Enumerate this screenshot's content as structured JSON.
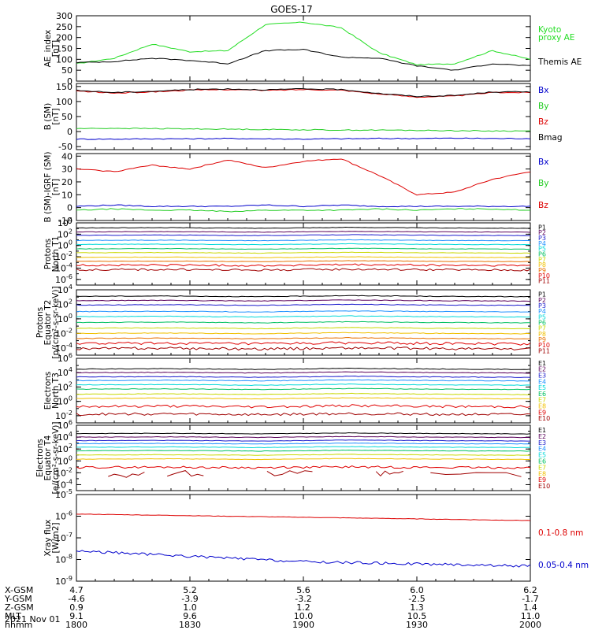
{
  "title": "GOES-17",
  "date_label": "2021 Nov 01",
  "footer": {
    "rows": [
      {
        "label": "X-GSM",
        "values": [
          "4.7",
          "5.2",
          "5.6",
          "6.0",
          "6.2"
        ]
      },
      {
        "label": "Y-GSM",
        "values": [
          "-4.6",
          "-3.9",
          "-3.2",
          "-2.5",
          "-1.7"
        ]
      },
      {
        "label": "Z-GSM",
        "values": [
          "0.9",
          "1.0",
          "1.2",
          "1.3",
          "1.4"
        ]
      },
      {
        "label": "MLT",
        "values": [
          "9.1",
          "9.6",
          "10.0",
          "10.5",
          "11.0"
        ]
      },
      {
        "label": "hhmm",
        "values": [
          "1800",
          "1830",
          "1900",
          "1930",
          "2000"
        ]
      }
    ]
  },
  "colors": {
    "p1": "#000000",
    "p2": "#5a005a",
    "p3": "#1a1acc",
    "p4": "#1e90ff",
    "p5": "#00d8d8",
    "p6": "#00c060",
    "p7": "#c8d800",
    "p8": "#f0c000",
    "p9": "#e87000",
    "p10": "#e00000",
    "p11": "#a00000",
    "ae_kyoto": "#22dd22",
    "ae_themis": "#000000",
    "bx": "#0000cc",
    "by": "#22cc22",
    "bz": "#dd0000",
    "bmag": "#000000"
  },
  "chart_data": [
    {
      "type": "line",
      "ylabel": "AE_index [nT]",
      "ylim": [
        0,
        300
      ],
      "yticks": [
        "300",
        "250",
        "200",
        "150",
        "100",
        "50",
        "0"
      ],
      "x": [
        "18:00",
        "18:10",
        "18:20",
        "18:30",
        "18:40",
        "18:50",
        "19:00",
        "19:10",
        "19:20",
        "19:30",
        "19:40",
        "19:50",
        "20:00"
      ],
      "series": [
        {
          "name": "Kyoto proxy AE",
          "color": "ae_kyoto",
          "values": [
            80,
            105,
            170,
            135,
            140,
            260,
            270,
            245,
            130,
            75,
            80,
            140,
            100
          ]
        },
        {
          "name": "Themis AE",
          "color": "ae_themis",
          "values": [
            85,
            90,
            105,
            95,
            80,
            140,
            145,
            110,
            105,
            70,
            50,
            80,
            70
          ]
        }
      ]
    },
    {
      "type": "line",
      "ylabel": "B (SM) [nT]",
      "ylim": [
        -60,
        160
      ],
      "yticks": [
        "150",
        "100",
        "50",
        "0",
        "-50"
      ],
      "x": [
        "18:00",
        "18:10",
        "18:20",
        "18:30",
        "18:40",
        "18:50",
        "19:00",
        "19:10",
        "19:20",
        "19:30",
        "19:40",
        "19:50",
        "20:00"
      ],
      "series": [
        {
          "name": "Bx",
          "color": "bx",
          "values": [
            -25,
            -25,
            -24,
            -24,
            -23,
            -24,
            -25,
            -24,
            -23,
            -23,
            -22,
            -23,
            -23
          ]
        },
        {
          "name": "By",
          "color": "by",
          "values": [
            10,
            11,
            10,
            9,
            8,
            7,
            6,
            5,
            5,
            4,
            3,
            2,
            2
          ]
        },
        {
          "name": "Bz",
          "color": "bz",
          "values": [
            135,
            128,
            132,
            138,
            140,
            137,
            140,
            138,
            125,
            115,
            118,
            130,
            130
          ]
        },
        {
          "name": "Bmag",
          "color": "bmag",
          "values": [
            137,
            130,
            134,
            140,
            142,
            139,
            142,
            140,
            127,
            117,
            120,
            132,
            132
          ]
        }
      ]
    },
    {
      "type": "line",
      "ylabel": "B (SM)-IGRF (SM) [nT]",
      "ylim": [
        -10,
        42
      ],
      "yticks": [
        "40",
        "30",
        "20",
        "10",
        "0",
        "-10"
      ],
      "x": [
        "18:00",
        "18:10",
        "18:20",
        "18:30",
        "18:40",
        "18:50",
        "19:00",
        "19:10",
        "19:20",
        "19:30",
        "19:40",
        "19:50",
        "20:00"
      ],
      "series": [
        {
          "name": "Bx",
          "color": "bx",
          "values": [
            1,
            2,
            1,
            1,
            1,
            2,
            1,
            2,
            1,
            1,
            1,
            1,
            1
          ]
        },
        {
          "name": "By",
          "color": "by",
          "values": [
            -2,
            -1,
            -2,
            -2,
            -3,
            -2,
            -2,
            -2,
            -1,
            -2,
            -1,
            -1,
            -2
          ]
        },
        {
          "name": "Bz",
          "color": "bz",
          "values": [
            30,
            28,
            33,
            30,
            37,
            31,
            36,
            38,
            25,
            10,
            12,
            22,
            28
          ]
        }
      ]
    },
    {
      "type": "line",
      "ylabel": "Protons North T1",
      "ylog": true,
      "ylim_exp": [
        -7,
        4
      ],
      "yticks": [
        "10^4",
        "10^2",
        "10^0",
        "10^-2",
        "10^-4",
        "10^-6"
      ],
      "channels": [
        "P1",
        "P2",
        "P3",
        "P4",
        "P5",
        "P6",
        "P7",
        "P8",
        "P9",
        "P10",
        "P11"
      ],
      "series_log10": [
        3.1,
        2.4,
        1.8,
        0.9,
        0.2,
        -0.6,
        -1.3,
        -2.1,
        -2.8,
        -3.5,
        -4.3
      ]
    },
    {
      "type": "line",
      "ylabel": "Protons Equator T2 [p/(cm2-s-sr-keV)]",
      "ylog": true,
      "ylim_exp": [
        -5,
        4
      ],
      "yticks": [
        "10^4",
        "10^2",
        "10^0",
        "10^-2",
        "10^-4"
      ],
      "channels": [
        "P1",
        "P2",
        "P3",
        "P4",
        "P5",
        "P6",
        "P7",
        "P8",
        "P9",
        "P10",
        "P11"
      ],
      "series_log10": [
        3.1,
        2.5,
        1.9,
        1.0,
        0.3,
        -0.5,
        -1.3,
        -2.0,
        -2.7,
        -3.4,
        -4.1
      ]
    },
    {
      "type": "line",
      "ylabel": "Electrons North T3",
      "ylog": true,
      "ylim_exp": [
        -3,
        6
      ],
      "yticks": [
        "10^6",
        "10^4",
        "10^2",
        "10^0",
        "10^-2"
      ],
      "channels": [
        "E1",
        "E2",
        "E3",
        "E4",
        "E5",
        "E6",
        "E7",
        "E8",
        "E9",
        "E10"
      ],
      "series_log10": [
        4.5,
        4.0,
        3.4,
        2.9,
        2.3,
        1.7,
        1.0,
        0.4,
        -0.7,
        -1.8
      ]
    },
    {
      "type": "line",
      "ylabel": "Electrons Equator T4 [e/(cm2-s-sr-keV)]",
      "ylog": true,
      "ylim_exp": [
        -5,
        6
      ],
      "yticks": [
        "10^6",
        "10^4",
        "10^2",
        "10^0",
        "10^-2",
        "10^-4"
      ],
      "channels": [
        "E1",
        "E2",
        "E3",
        "E4",
        "E5",
        "E6",
        "E7",
        "E8",
        "E9",
        "E10"
      ],
      "series_log10": [
        4.6,
        4.0,
        3.4,
        2.9,
        2.3,
        1.7,
        1.0,
        0.3,
        -1.1,
        -2.2
      ]
    },
    {
      "type": "line",
      "ylabel": "Xray flux [W/m2]",
      "ylog": true,
      "ylim_exp": [
        -9,
        -5
      ],
      "yticks": [
        "10^-5",
        "10^-6",
        "10^-7",
        "10^-8",
        "10^-9"
      ],
      "series": [
        {
          "name": "0.1-0.8 nm",
          "color": "bz",
          "log10": [
            -5.9,
            -6.05,
            -6.2
          ]
        },
        {
          "name": "0.05-0.4 nm",
          "color": "bx",
          "log10": [
            -7.6,
            -8.1,
            -8.3
          ]
        }
      ]
    }
  ],
  "panel_legends": [
    [
      "Kyoto",
      "proxy AE",
      "Themis AE"
    ],
    [
      "Bx",
      "By",
      "Bz",
      "Bmag"
    ],
    [
      "Bx",
      "By",
      "Bz"
    ],
    [
      "P1",
      "P2",
      "P3",
      "P4",
      "P5",
      "P6",
      "P7",
      "P8",
      "P9",
      "P10",
      "P11"
    ],
    [
      "P1",
      "P2",
      "P3",
      "P4",
      "P5",
      "P6",
      "P7",
      "P8",
      "P9",
      "P10",
      "P11"
    ],
    [
      "E1",
      "E2",
      "E3",
      "E4",
      "E5",
      "E6",
      "E7",
      "E8",
      "E9",
      "E10"
    ],
    [
      "E1",
      "E2",
      "E3",
      "E4",
      "E5",
      "E6",
      "E7",
      "E8",
      "E9",
      "E10"
    ],
    [
      "0.1-0.8 nm",
      "0.05-0.4 nm"
    ]
  ],
  "panel_ylabels": [
    [
      "AE_index",
      "[nT]"
    ],
    [
      "B (SM)",
      "[nT]"
    ],
    [
      "B (SM)-IGRF (SM)",
      "[nT]"
    ],
    [
      "Protons",
      "North T1"
    ],
    [
      "Protons",
      "Equator T2",
      "[p/(cm²-s-sr-keV)]"
    ],
    [
      "Electrons",
      "North T3"
    ],
    [
      "Electrons",
      "Equator T4",
      "[e/(cm²-s-sr-keV)]"
    ],
    [
      "Xray flux",
      "[W/m2]"
    ]
  ]
}
